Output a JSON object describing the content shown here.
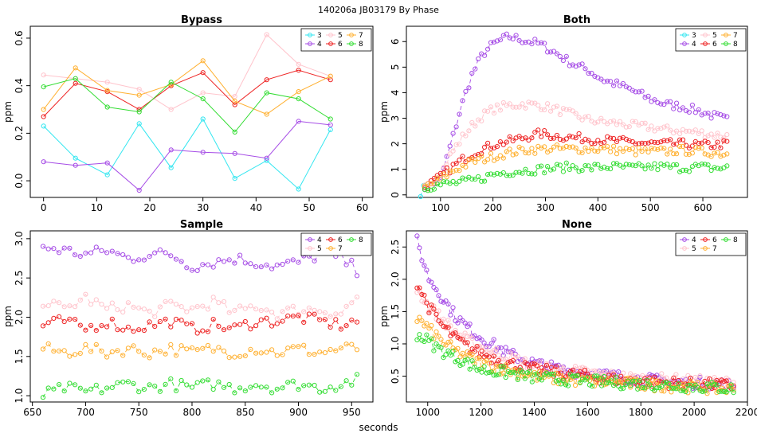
{
  "figure": {
    "suptitle": "140206a   JB03179   By Phase",
    "xlabel": "seconds"
  },
  "colors": {
    "3": "#33e6f0",
    "4": "#a64de6",
    "5": "#ffc4cc",
    "6": "#ee2222",
    "7": "#ffb030",
    "8": "#33dd33"
  },
  "chart_data": [
    {
      "type": "line",
      "title": "Bypass",
      "xlabel": "",
      "ylabel": "ppm",
      "xlim": [
        -2.5,
        62
      ],
      "ylim": [
        -0.07,
        0.65
      ],
      "xticks": [
        0,
        10,
        20,
        30,
        40,
        50,
        60
      ],
      "yticks": [
        0.0,
        0.2,
        0.4,
        0.6
      ],
      "ytick_labels": [
        "0.0",
        "0.2",
        "0.4",
        "0.6"
      ],
      "legend": [
        "3",
        "4",
        "5",
        "6",
        "7",
        "8"
      ],
      "legend_cols": 3,
      "series": [
        {
          "name": "3",
          "x": [
            0,
            6,
            12,
            18,
            24,
            30,
            36,
            42,
            48,
            54
          ],
          "values": [
            0.23,
            0.095,
            0.025,
            0.24,
            0.055,
            0.26,
            0.01,
            0.085,
            -0.035,
            0.215
          ]
        },
        {
          "name": "4",
          "x": [
            0,
            6,
            12,
            18,
            24,
            30,
            36,
            42,
            48,
            54
          ],
          "values": [
            0.08,
            0.065,
            0.075,
            -0.04,
            0.13,
            0.12,
            0.115,
            0.095,
            0.25,
            0.235
          ]
        },
        {
          "name": "5",
          "x": [
            0,
            6,
            12,
            18,
            24,
            30,
            36,
            42,
            48,
            54
          ],
          "values": [
            0.445,
            0.43,
            0.415,
            0.385,
            0.3,
            0.37,
            0.355,
            0.615,
            0.49,
            0.44
          ]
        },
        {
          "name": "6",
          "x": [
            0,
            6,
            12,
            18,
            24,
            30,
            36,
            42,
            48,
            54
          ],
          "values": [
            0.27,
            0.41,
            0.375,
            0.3,
            0.4,
            0.455,
            0.32,
            0.425,
            0.465,
            0.425
          ]
        },
        {
          "name": "7",
          "x": [
            0,
            6,
            12,
            18,
            24,
            30,
            36,
            42,
            48,
            54
          ],
          "values": [
            0.3,
            0.475,
            0.38,
            0.36,
            0.405,
            0.505,
            0.335,
            0.28,
            0.375,
            0.44
          ]
        },
        {
          "name": "8",
          "x": [
            0,
            6,
            12,
            18,
            24,
            30,
            36,
            42,
            48,
            54
          ],
          "values": [
            0.395,
            0.43,
            0.31,
            0.29,
            0.415,
            0.345,
            0.205,
            0.37,
            0.345,
            0.26
          ]
        }
      ]
    },
    {
      "type": "line",
      "title": "Both",
      "xlabel": "",
      "ylabel": "ppm",
      "xlim": [
        35,
        685
      ],
      "ylim": [
        -0.1,
        6.6
      ],
      "xticks": [
        100,
        200,
        300,
        400,
        500,
        600
      ],
      "yticks": [
        0,
        1,
        2,
        3,
        4,
        5,
        6
      ],
      "ytick_labels": [
        "0",
        "1",
        "2",
        "3",
        "4",
        "5",
        "6"
      ],
      "legend": [
        "3",
        "4",
        "5",
        "6",
        "7",
        "8"
      ],
      "legend_cols": 3,
      "series": [
        {
          "name": "3",
          "x": [
            62,
            66,
            70,
            74,
            78
          ],
          "values": [
            0.1,
            0.3,
            0.15,
            0.4,
            0.45
          ]
        },
        {
          "name": "4",
          "x": [
            70,
            100,
            120,
            140,
            160,
            180,
            200,
            230,
            260,
            290,
            320,
            350,
            380,
            410,
            440,
            470,
            500,
            530,
            560,
            590,
            620,
            650
          ],
          "values": [
            0.3,
            0.6,
            2.0,
            3.5,
            4.7,
            5.5,
            5.9,
            6.2,
            6.05,
            5.9,
            5.55,
            5.15,
            4.9,
            4.5,
            4.3,
            4.05,
            3.75,
            3.55,
            3.45,
            3.3,
            3.1,
            2.9
          ]
        },
        {
          "name": "5",
          "x": [
            70,
            100,
            120,
            140,
            160,
            180,
            200,
            230,
            260,
            290,
            320,
            350,
            380,
            410,
            440,
            470,
            500,
            530,
            560,
            590,
            620,
            650
          ],
          "values": [
            0.3,
            0.8,
            1.6,
            2.2,
            2.7,
            3.1,
            3.35,
            3.5,
            3.55,
            3.5,
            3.35,
            3.15,
            2.95,
            2.85,
            2.8,
            2.7,
            2.65,
            2.55,
            2.5,
            2.45,
            2.35,
            2.3
          ]
        },
        {
          "name": "6",
          "x": [
            70,
            100,
            120,
            140,
            160,
            180,
            200,
            230,
            260,
            290,
            320,
            350,
            380,
            410,
            440,
            470,
            500,
            530,
            560,
            590,
            620,
            650
          ],
          "values": [
            0.3,
            0.7,
            1.05,
            1.35,
            1.6,
            1.8,
            1.95,
            2.1,
            2.25,
            2.4,
            2.3,
            2.25,
            2.2,
            2.15,
            2.1,
            2.05,
            2.0,
            2.0,
            2.0,
            1.95,
            1.95,
            2.0
          ]
        },
        {
          "name": "7",
          "x": [
            70,
            100,
            120,
            140,
            160,
            180,
            200,
            230,
            260,
            290,
            320,
            350,
            380,
            410,
            440,
            470,
            500,
            530,
            560,
            590,
            620,
            650
          ],
          "values": [
            0.3,
            0.6,
            0.9,
            1.1,
            1.3,
            1.4,
            1.5,
            1.65,
            1.75,
            1.8,
            1.8,
            1.8,
            1.8,
            1.8,
            1.75,
            1.7,
            1.7,
            1.7,
            1.75,
            1.7,
            1.65,
            1.6
          ]
        },
        {
          "name": "8",
          "x": [
            70,
            100,
            120,
            140,
            160,
            180,
            200,
            230,
            260,
            290,
            320,
            350,
            380,
            410,
            440,
            470,
            500,
            530,
            560,
            590,
            620,
            650
          ],
          "values": [
            0.3,
            0.4,
            0.45,
            0.5,
            0.55,
            0.65,
            0.8,
            0.9,
            0.95,
            1.0,
            1.05,
            1.1,
            1.05,
            1.1,
            1.1,
            1.05,
            1.1,
            1.1,
            1.05,
            1.1,
            1.05,
            1.05
          ]
        }
      ]
    },
    {
      "type": "line",
      "title": "Sample",
      "xlabel": "",
      "ylabel": "ppm",
      "xlim": [
        648,
        970
      ],
      "ylim": [
        0.92,
        3.1
      ],
      "xticks": [
        650,
        700,
        750,
        800,
        850,
        900,
        950
      ],
      "yticks": [
        1.0,
        1.5,
        2.0,
        2.5,
        3.0
      ],
      "ytick_labels": [
        "1.0",
        "1.5",
        "2.0",
        "2.5",
        "3.0"
      ],
      "legend": [
        "4",
        "5",
        "6",
        "7",
        "8"
      ],
      "legend_cols": 3,
      "series": [
        {
          "name": "4",
          "x": [
            660,
            680,
            700,
            720,
            740,
            760,
            780,
            800,
            820,
            840,
            860,
            880,
            900,
            920,
            940,
            955
          ],
          "values": [
            2.9,
            2.85,
            2.8,
            2.85,
            2.75,
            2.8,
            2.8,
            2.65,
            2.7,
            2.75,
            2.7,
            2.65,
            2.7,
            2.8,
            2.75,
            2.6
          ]
        },
        {
          "name": "5",
          "x": [
            660,
            680,
            700,
            720,
            740,
            760,
            780,
            800,
            820,
            840,
            860,
            880,
            900,
            920,
            940,
            955
          ],
          "values": [
            2.2,
            2.1,
            2.25,
            2.1,
            2.15,
            2.05,
            2.15,
            2.1,
            2.2,
            2.05,
            2.15,
            2.05,
            2.1,
            2.1,
            2.05,
            2.25
          ]
        },
        {
          "name": "6",
          "x": [
            660,
            680,
            700,
            720,
            740,
            760,
            780,
            800,
            820,
            840,
            860,
            880,
            900,
            920,
            940,
            955
          ],
          "values": [
            1.9,
            1.95,
            1.85,
            1.95,
            1.85,
            1.9,
            1.95,
            1.85,
            1.9,
            1.85,
            1.95,
            1.95,
            2.0,
            1.95,
            1.9,
            1.95
          ]
        },
        {
          "name": "7",
          "x": [
            660,
            680,
            700,
            720,
            740,
            760,
            780,
            800,
            820,
            840,
            860,
            880,
            900,
            920,
            940,
            955
          ],
          "values": [
            1.6,
            1.55,
            1.6,
            1.55,
            1.6,
            1.55,
            1.6,
            1.55,
            1.6,
            1.55,
            1.6,
            1.55,
            1.6,
            1.55,
            1.6,
            1.6
          ]
        },
        {
          "name": "8",
          "x": [
            660,
            680,
            700,
            720,
            740,
            760,
            780,
            800,
            820,
            840,
            860,
            880,
            900,
            920,
            940,
            955
          ],
          "values": [
            1.0,
            1.1,
            1.05,
            1.1,
            1.15,
            1.1,
            1.15,
            1.1,
            1.15,
            1.1,
            1.15,
            1.1,
            1.15,
            1.1,
            1.15,
            1.2
          ]
        }
      ]
    },
    {
      "type": "line",
      "title": "None",
      "xlabel": "",
      "ylabel": "ppm",
      "xlim": [
        920,
        2200
      ],
      "ylim": [
        0.1,
        2.75
      ],
      "xticks": [
        1000,
        1200,
        1400,
        1600,
        1800,
        2000,
        2200
      ],
      "yticks": [
        0.5,
        1.0,
        1.5,
        2.0,
        2.5
      ],
      "ytick_labels": [
        "0.5",
        "1.0",
        "1.5",
        "2.0",
        "2.5"
      ],
      "legend": [
        "4",
        "5",
        "6",
        "7",
        "8"
      ],
      "legend_cols": 3,
      "series": [
        {
          "name": "4",
          "x": [
            960,
            1000,
            1050,
            1100,
            1150,
            1200,
            1300,
            1400,
            1500,
            1600,
            1700,
            1800,
            1900,
            2000,
            2100,
            2150
          ],
          "values": [
            2.6,
            2.05,
            1.75,
            1.45,
            1.25,
            1.1,
            0.85,
            0.7,
            0.6,
            0.55,
            0.5,
            0.45,
            0.42,
            0.4,
            0.38,
            0.35
          ]
        },
        {
          "name": "5",
          "x": [
            960,
            1000,
            1050,
            1100,
            1150,
            1200,
            1300,
            1400,
            1500,
            1600,
            1700,
            1800,
            1900,
            2000,
            2100,
            2150
          ],
          "values": [
            1.85,
            1.6,
            1.4,
            1.2,
            1.05,
            0.95,
            0.8,
            0.65,
            0.6,
            0.55,
            0.5,
            0.45,
            0.45,
            0.42,
            0.4,
            0.4
          ]
        },
        {
          "name": "6",
          "x": [
            960,
            1000,
            1050,
            1100,
            1150,
            1200,
            1300,
            1400,
            1500,
            1600,
            1700,
            1800,
            1900,
            2000,
            2100,
            2150
          ],
          "values": [
            1.95,
            1.6,
            1.3,
            1.1,
            0.95,
            0.85,
            0.7,
            0.6,
            0.55,
            0.5,
            0.45,
            0.42,
            0.4,
            0.38,
            0.36,
            0.35
          ]
        },
        {
          "name": "7",
          "x": [
            960,
            1000,
            1050,
            1100,
            1150,
            1200,
            1300,
            1400,
            1500,
            1600,
            1700,
            1800,
            1900,
            2000,
            2100,
            2150
          ],
          "values": [
            1.4,
            1.25,
            1.05,
            0.9,
            0.8,
            0.7,
            0.6,
            0.5,
            0.45,
            0.42,
            0.4,
            0.37,
            0.35,
            0.33,
            0.3,
            0.3
          ]
        },
        {
          "name": "8",
          "x": [
            960,
            1000,
            1050,
            1100,
            1150,
            1200,
            1300,
            1400,
            1500,
            1600,
            1700,
            1800,
            1900,
            2000,
            2100,
            2150
          ],
          "values": [
            1.15,
            1.05,
            0.9,
            0.8,
            0.7,
            0.6,
            0.55,
            0.48,
            0.45,
            0.42,
            0.4,
            0.38,
            0.36,
            0.34,
            0.32,
            0.3
          ]
        }
      ]
    }
  ]
}
